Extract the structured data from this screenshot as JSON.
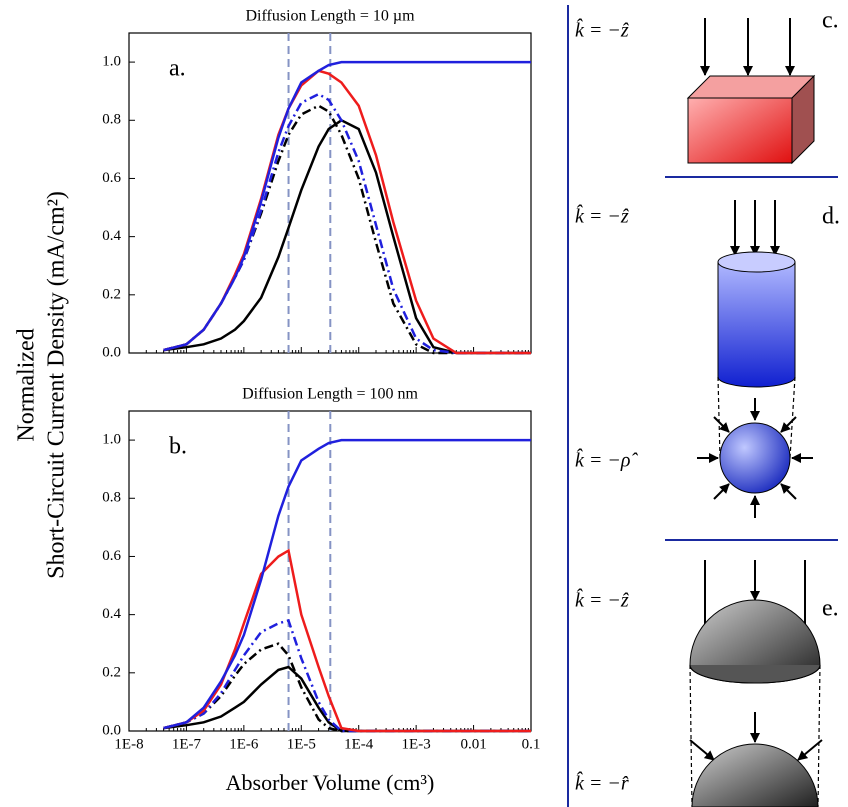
{
  "figure": {
    "ylabel_lines": [
      "Normalized",
      "Short-Circuit Current Density (mA/cm²)"
    ],
    "xlabel": "Absorber Volume (cm³)"
  },
  "chart_data": [
    {
      "type": "line",
      "title": "Diffusion Length = 10 µm",
      "annotation": "a.",
      "xscale": "log",
      "xlim": [
        1e-08,
        0.1
      ],
      "ylim": [
        0,
        1.1
      ],
      "xticks": [
        1e-08,
        1e-07,
        1e-06,
        1e-05,
        0.0001,
        0.001,
        0.01,
        0.1
      ],
      "yticks": [
        {
          "value": 0,
          "label": "0.0"
        },
        0.2,
        0.4,
        0.6,
        0.8,
        {
          "value": 1,
          "label": "1.0"
        }
      ],
      "vlines": [
        6e-06,
        3.2e-05
      ],
      "vline_color": "#8593c4",
      "x": [
        4e-08,
        1e-07,
        2e-07,
        4e-07,
        7e-07,
        1e-06,
        2e-06,
        4e-06,
        6e-06,
        1e-05,
        2e-05,
        3e-05,
        5e-05,
        0.0001,
        0.0002,
        0.0004,
        0.001,
        0.002,
        0.005,
        0.01,
        0.1
      ],
      "series": [
        {
          "color": "#000000",
          "style": "solid",
          "values": [
            0.01,
            0.02,
            0.03,
            0.05,
            0.08,
            0.11,
            0.19,
            0.33,
            0.43,
            0.56,
            0.71,
            0.77,
            0.8,
            0.77,
            0.62,
            0.4,
            0.12,
            0.02,
            0.0,
            0.0,
            0.0
          ]
        },
        {
          "color": "#000000",
          "style": "dash-dot",
          "values": [
            0.01,
            0.03,
            0.08,
            0.17,
            0.26,
            0.32,
            0.48,
            0.66,
            0.75,
            0.82,
            0.85,
            0.83,
            0.75,
            0.6,
            0.38,
            0.17,
            0.03,
            0.0,
            0.0,
            0.0,
            0.0
          ]
        },
        {
          "color": "#2020dd",
          "style": "dash-dot",
          "values": [
            0.01,
            0.03,
            0.08,
            0.17,
            0.26,
            0.32,
            0.49,
            0.69,
            0.78,
            0.86,
            0.89,
            0.87,
            0.8,
            0.66,
            0.44,
            0.22,
            0.05,
            0.01,
            0.0,
            0.0,
            0.0
          ]
        },
        {
          "color": "#ee1c1c",
          "style": "solid",
          "values": [
            0.01,
            0.03,
            0.08,
            0.17,
            0.27,
            0.34,
            0.53,
            0.75,
            0.84,
            0.92,
            0.97,
            0.96,
            0.93,
            0.85,
            0.68,
            0.45,
            0.18,
            0.05,
            0.0,
            0.0,
            0.0
          ]
        },
        {
          "color": "#2020dd",
          "style": "solid",
          "values": [
            0.01,
            0.03,
            0.08,
            0.17,
            0.26,
            0.33,
            0.52,
            0.74,
            0.84,
            0.93,
            0.97,
            0.99,
            1.0,
            1.0,
            1.0,
            1.0,
            1.0,
            1.0,
            1.0,
            1.0,
            1.0
          ]
        }
      ]
    },
    {
      "type": "line",
      "title": "Diffusion Length = 100 nm",
      "annotation": "b.",
      "xscale": "log",
      "xlim": [
        1e-08,
        0.1
      ],
      "ylim": [
        0,
        1.1
      ],
      "xticks": [
        {
          "value": 1e-08,
          "label": "1E-8"
        },
        {
          "value": 1e-07,
          "label": "1E-7"
        },
        {
          "value": 1e-06,
          "label": "1E-6"
        },
        {
          "value": 1e-05,
          "label": "1E-5"
        },
        {
          "value": 0.0001,
          "label": "1E-4"
        },
        {
          "value": 0.001,
          "label": "1E-3"
        },
        0.01,
        0.1
      ],
      "yticks": [
        {
          "value": 0,
          "label": "0.0"
        },
        0.2,
        0.4,
        0.6,
        0.8,
        {
          "value": 1,
          "label": "1.0"
        }
      ],
      "vlines": [
        6e-06,
        3.2e-05
      ],
      "vline_color": "#8593c4",
      "x": [
        4e-08,
        1e-07,
        2e-07,
        4e-07,
        7e-07,
        1e-06,
        2e-06,
        4e-06,
        6e-06,
        1e-05,
        2e-05,
        3e-05,
        5e-05,
        0.0001,
        0.0002,
        0.0004,
        0.001,
        0.002,
        0.005,
        0.01,
        0.1
      ],
      "series": [
        {
          "color": "#000000",
          "style": "solid",
          "values": [
            0.01,
            0.02,
            0.03,
            0.05,
            0.08,
            0.1,
            0.16,
            0.21,
            0.22,
            0.18,
            0.08,
            0.03,
            0.0,
            0.0,
            0.0,
            0.0,
            0.0,
            0.0,
            0.0,
            0.0,
            0.0
          ]
        },
        {
          "color": "#000000",
          "style": "dash-dot",
          "values": [
            0.01,
            0.03,
            0.06,
            0.12,
            0.19,
            0.23,
            0.28,
            0.3,
            0.26,
            0.15,
            0.04,
            0.01,
            0.0,
            0.0,
            0.0,
            0.0,
            0.0,
            0.0,
            0.0,
            0.0,
            0.0
          ]
        },
        {
          "color": "#2020dd",
          "style": "dash-dot",
          "values": [
            0.01,
            0.03,
            0.06,
            0.13,
            0.21,
            0.26,
            0.34,
            0.37,
            0.38,
            0.25,
            0.1,
            0.04,
            0.0,
            0.0,
            0.0,
            0.0,
            0.0,
            0.0,
            0.0,
            0.0,
            0.0
          ]
        },
        {
          "color": "#ee1c1c",
          "style": "solid",
          "values": [
            0.01,
            0.03,
            0.07,
            0.16,
            0.28,
            0.37,
            0.54,
            0.6,
            0.62,
            0.4,
            0.22,
            0.12,
            0.01,
            0.0,
            0.0,
            0.0,
            0.0,
            0.0,
            0.0,
            0.0,
            0.0
          ]
        },
        {
          "color": "#2020dd",
          "style": "solid",
          "values": [
            0.01,
            0.03,
            0.08,
            0.17,
            0.26,
            0.33,
            0.52,
            0.74,
            0.84,
            0.93,
            0.97,
            0.99,
            1.0,
            1.0,
            1.0,
            1.0,
            1.0,
            1.0,
            1.0,
            1.0,
            1.0
          ]
        }
      ]
    }
  ],
  "diagrams": {
    "c": {
      "label": "c.",
      "equation": "k̂ = −ẑ"
    },
    "d": {
      "label": "d.",
      "equation_top": "k̂ = −ẑ",
      "equation_bottom": "k̂ = −ρ̂"
    },
    "e": {
      "label": "e.",
      "equation_top": "k̂ = −ẑ",
      "equation_bottom": "k̂ = −r̂"
    }
  }
}
